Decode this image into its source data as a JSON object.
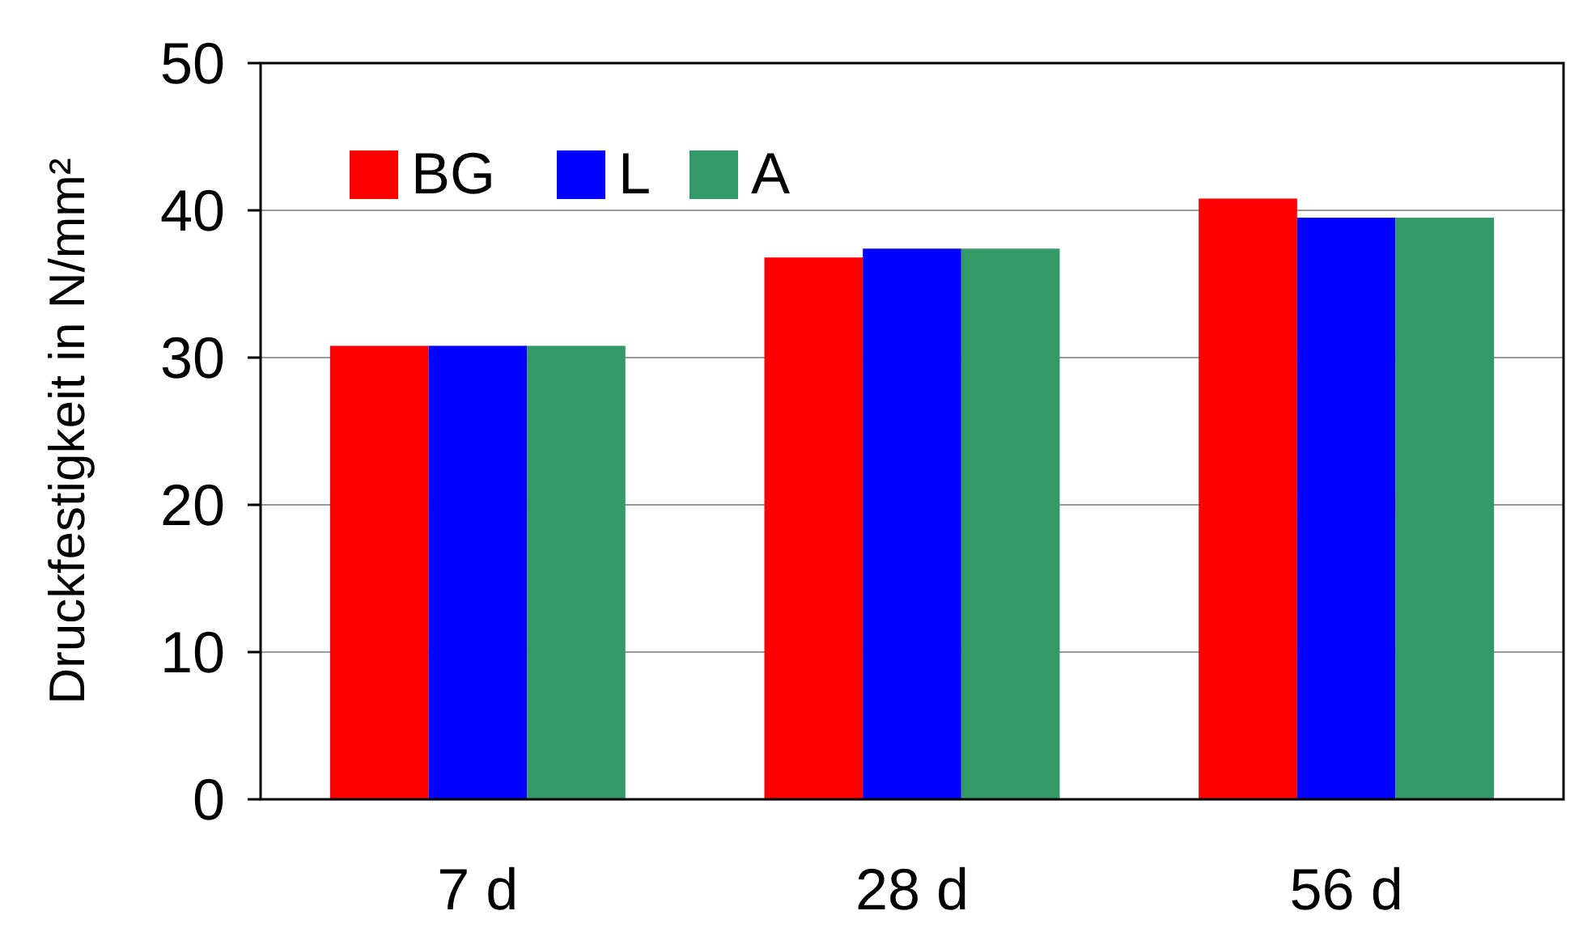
{
  "chart_data": {
    "type": "bar",
    "ylabel": "Druckfestigkeit in N/mm²",
    "categories": [
      "7 d",
      "28 d",
      "56 d"
    ],
    "series": [
      {
        "name": "BG",
        "color": "#ff0000",
        "values": [
          30.8,
          36.8,
          40.8
        ]
      },
      {
        "name": "L",
        "color": "#0000ff",
        "values": [
          30.8,
          37.4,
          39.5
        ]
      },
      {
        "name": "A",
        "color": "#339966",
        "values": [
          30.8,
          37.4,
          39.5
        ]
      }
    ],
    "ylim": [
      0,
      50
    ],
    "yticks": [
      0,
      10,
      20,
      30,
      40,
      50
    ],
    "grid": "y",
    "legend": "top left"
  }
}
